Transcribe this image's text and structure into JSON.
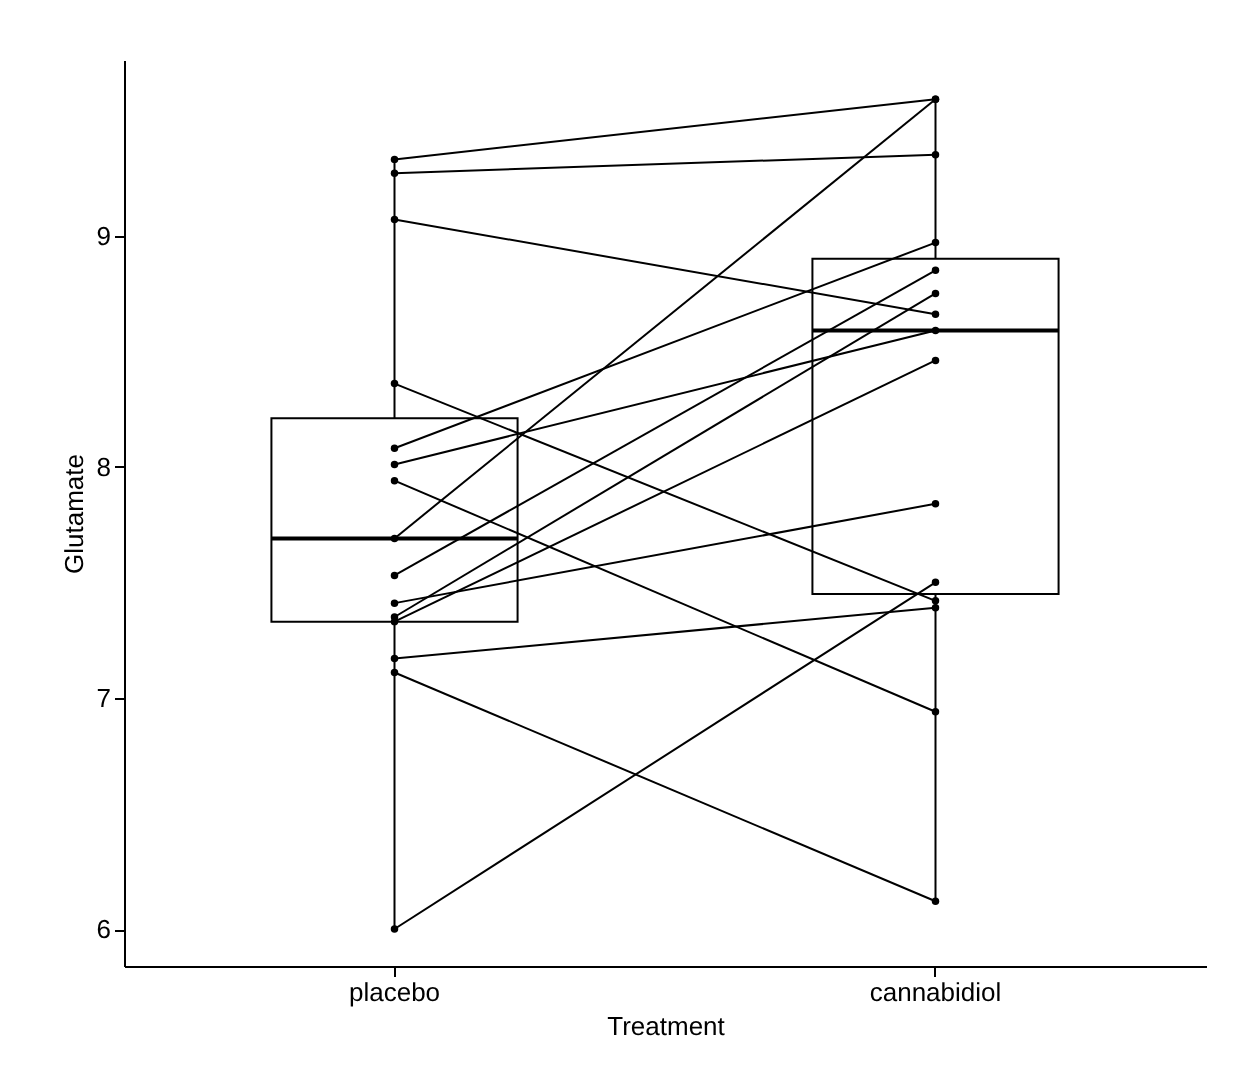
{
  "chart_data": {
    "type": "box",
    "xlabel": "Treatment",
    "ylabel": "Glutamate",
    "categories": [
      "placebo",
      "cannabidiol"
    ],
    "ylim": [
      5.84,
      9.76
    ],
    "yticks": [
      6,
      7,
      8,
      9
    ],
    "grid": false,
    "marker": "circle",
    "boxes": [
      {
        "low": 6.0,
        "q1": 7.33,
        "median": 7.69,
        "q3": 8.21,
        "high": 9.33
      },
      {
        "low": 6.12,
        "q1": 7.45,
        "median": 8.59,
        "q3": 8.9,
        "high": 9.59
      }
    ],
    "series": [
      {
        "type": "line",
        "color": "#000000",
        "values": [
          9.33,
          9.59
        ]
      },
      {
        "type": "line",
        "color": "#000000",
        "values": [
          9.27,
          9.35
        ]
      },
      {
        "type": "line",
        "color": "#000000",
        "values": [
          9.07,
          8.66
        ]
      },
      {
        "type": "line",
        "color": "#000000",
        "values": [
          8.36,
          7.42
        ]
      },
      {
        "type": "line",
        "color": "#000000",
        "values": [
          8.08,
          8.97
        ]
      },
      {
        "type": "line",
        "color": "#000000",
        "values": [
          8.01,
          8.59
        ]
      },
      {
        "type": "line",
        "color": "#000000",
        "values": [
          7.94,
          6.94
        ]
      },
      {
        "type": "line",
        "color": "#000000",
        "values": [
          7.69,
          9.59
        ]
      },
      {
        "type": "line",
        "color": "#000000",
        "values": [
          7.53,
          8.85
        ]
      },
      {
        "type": "line",
        "color": "#000000",
        "values": [
          7.41,
          7.84
        ]
      },
      {
        "type": "line",
        "color": "#000000",
        "values": [
          7.35,
          8.75
        ]
      },
      {
        "type": "line",
        "color": "#000000",
        "values": [
          7.33,
          8.46
        ]
      },
      {
        "type": "line",
        "color": "#000000",
        "values": [
          7.17,
          7.39
        ]
      },
      {
        "type": "line",
        "color": "#000000",
        "values": [
          7.11,
          6.12
        ]
      },
      {
        "type": "line",
        "color": "#000000",
        "values": [
          6.0,
          7.5
        ]
      }
    ]
  }
}
